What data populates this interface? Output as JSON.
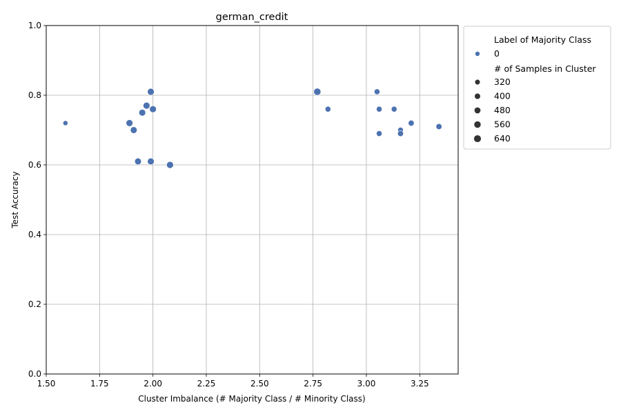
{
  "chart_data": {
    "type": "scatter",
    "title": "german_credit",
    "xlabel": "Cluster Imbalance (# Majority Class / # Minority Class)",
    "ylabel": "Test Accuracy",
    "xlim": [
      1.5,
      3.43
    ],
    "ylim": [
      0.0,
      1.0
    ],
    "xticks": [
      "1.50",
      "1.75",
      "2.00",
      "2.25",
      "2.50",
      "2.75",
      "3.00",
      "3.25"
    ],
    "xtick_values": [
      1.5,
      1.75,
      2.0,
      2.25,
      2.5,
      2.75,
      3.0,
      3.25
    ],
    "yticks": [
      "0.0",
      "0.2",
      "0.4",
      "0.6",
      "0.8",
      "1.0"
    ],
    "ytick_values": [
      0.0,
      0.2,
      0.4,
      0.6,
      0.8,
      1.0
    ],
    "grid": true,
    "point_color": "#4c72b0",
    "legend": {
      "placement": "outside-top-right",
      "hue_title": "Label of Majority Class",
      "hue_entries": [
        {
          "label": "0",
          "color": "#4c72b0"
        }
      ],
      "size_title": "# of Samples in Cluster",
      "size_entries": [
        "320",
        "400",
        "480",
        "560",
        "640"
      ],
      "size_values": [
        320,
        400,
        480,
        560,
        640
      ]
    },
    "points": [
      {
        "x": 1.59,
        "y": 0.72,
        "size": 320
      },
      {
        "x": 1.89,
        "y": 0.72,
        "size": 600
      },
      {
        "x": 1.91,
        "y": 0.7,
        "size": 580
      },
      {
        "x": 1.93,
        "y": 0.61,
        "size": 580
      },
      {
        "x": 1.95,
        "y": 0.75,
        "size": 590
      },
      {
        "x": 1.97,
        "y": 0.77,
        "size": 600
      },
      {
        "x": 1.99,
        "y": 0.81,
        "size": 600
      },
      {
        "x": 1.99,
        "y": 0.61,
        "size": 590
      },
      {
        "x": 2.0,
        "y": 0.76,
        "size": 600
      },
      {
        "x": 2.08,
        "y": 0.6,
        "size": 610
      },
      {
        "x": 2.77,
        "y": 0.81,
        "size": 660
      },
      {
        "x": 2.82,
        "y": 0.76,
        "size": 420
      },
      {
        "x": 3.05,
        "y": 0.81,
        "size": 420
      },
      {
        "x": 3.06,
        "y": 0.76,
        "size": 420
      },
      {
        "x": 3.06,
        "y": 0.69,
        "size": 420
      },
      {
        "x": 3.13,
        "y": 0.76,
        "size": 420
      },
      {
        "x": 3.16,
        "y": 0.7,
        "size": 400
      },
      {
        "x": 3.16,
        "y": 0.69,
        "size": 450
      },
      {
        "x": 3.21,
        "y": 0.72,
        "size": 450
      },
      {
        "x": 3.34,
        "y": 0.71,
        "size": 450
      }
    ]
  }
}
